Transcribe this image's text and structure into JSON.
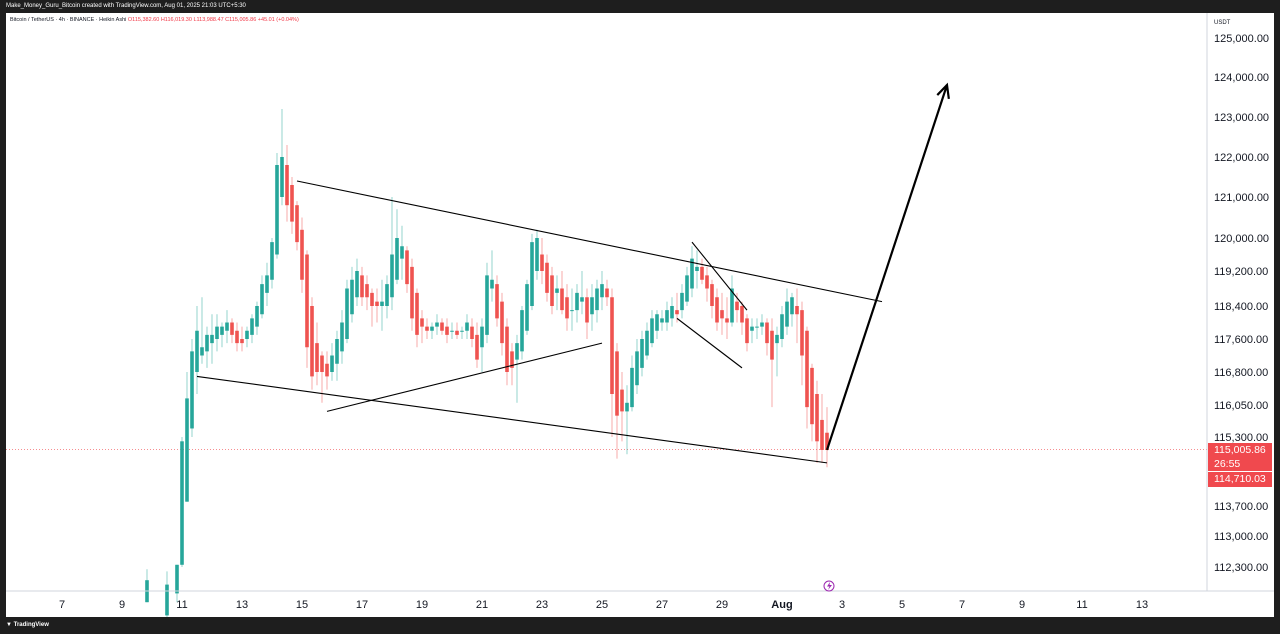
{
  "header": {
    "attribution": "Make_Money_Guru_Bitcoin created with TradingView.com, Aug 01, 2025 21:03 UTC+5:30"
  },
  "footer": {
    "logo_text": "TradingView"
  },
  "legend": {
    "symbol": "Bitcoin / TetherUS · 4h · BINANCE · Heikin Ashi",
    "open": "O115,382.60",
    "high": "H116,019.30",
    "low": "L113,988.47",
    "close": "C115,005.86",
    "change": "+45.01 (+0.04%)"
  },
  "price_axis": {
    "currency": "USDT",
    "ticks": [
      "125,000.00",
      "124,000.00",
      "123,000.00",
      "122,000.00",
      "121,000.00",
      "120,000.00",
      "119,200.00",
      "118,400.00",
      "117,600.00",
      "116,800.00",
      "116,050.00",
      "115,300.00",
      "113,700.00",
      "113,000.00",
      "112,300.00"
    ],
    "current_price": "115,005.86",
    "countdown": "26:55",
    "low_marker": "114,710.03"
  },
  "time_axis": {
    "ticks": [
      "7",
      "9",
      "11",
      "13",
      "15",
      "17",
      "19",
      "21",
      "23",
      "25",
      "27",
      "29",
      "Aug",
      "3",
      "5",
      "7",
      "9",
      "11",
      "13"
    ]
  },
  "colors": {
    "up": "#26a69a",
    "down": "#ef5350",
    "price_label": "#f0494e",
    "lines": "#000000"
  },
  "chart_data": {
    "type": "candlestick",
    "series_style": "Heikin Ashi",
    "timeframe": "4h",
    "symbol": "BTCUSDT",
    "ylim": [
      111900,
      125400
    ],
    "x_range_days": [
      "Jul 5",
      "Aug 14"
    ],
    "candles": [
      {
        "t": "Jul 09 20:00",
        "o": 111500,
        "h": 112250,
        "l": 111500,
        "c": 112000
      },
      {
        "t": "Jul 10 12:00",
        "o": 111200,
        "h": 112200,
        "l": 111000,
        "c": 111900
      },
      {
        "t": "Jul 10 20:00",
        "o": 111700,
        "h": 112350,
        "l": 111500,
        "c": 112350
      },
      {
        "t": "Jul 11 00:00",
        "o": 112350,
        "h": 115300,
        "l": 112300,
        "c": 115200
      },
      {
        "t": "Jul 11 04:00",
        "o": 113800,
        "h": 116800,
        "l": 113800,
        "c": 116200
      },
      {
        "t": "Jul 11 08:00",
        "o": 115500,
        "h": 117600,
        "l": 115300,
        "c": 117300
      },
      {
        "t": "Jul 11 12:00",
        "o": 116800,
        "h": 118400,
        "l": 116300,
        "c": 117800
      },
      {
        "t": "Jul 11 16:00",
        "o": 117200,
        "h": 118600,
        "l": 117000,
        "c": 117400
      },
      {
        "t": "Jul 11 20:00",
        "o": 117300,
        "h": 117900,
        "l": 116900,
        "c": 117700
      },
      {
        "t": "Jul 12 00:00",
        "o": 117500,
        "h": 118200,
        "l": 117000,
        "c": 117700
      },
      {
        "t": "Jul 12 04:00",
        "o": 117600,
        "h": 118200,
        "l": 117300,
        "c": 117900
      },
      {
        "t": "Jul 12 08:00",
        "o": 117700,
        "h": 118000,
        "l": 117400,
        "c": 117900
      },
      {
        "t": "Jul 12 12:00",
        "o": 117800,
        "h": 118300,
        "l": 117500,
        "c": 118000
      },
      {
        "t": "Jul 12 16:00",
        "o": 118000,
        "h": 118100,
        "l": 117500,
        "c": 117700
      },
      {
        "t": "Jul 12 20:00",
        "o": 117800,
        "h": 118000,
        "l": 117300,
        "c": 117500
      },
      {
        "t": "Jul 13 00:00",
        "o": 117600,
        "h": 117900,
        "l": 117300,
        "c": 117500
      },
      {
        "t": "Jul 13 04:00",
        "o": 117600,
        "h": 117900,
        "l": 117400,
        "c": 117800
      },
      {
        "t": "Jul 13 08:00",
        "o": 117700,
        "h": 118200,
        "l": 117500,
        "c": 118100
      },
      {
        "t": "Jul 13 12:00",
        "o": 117900,
        "h": 118500,
        "l": 117700,
        "c": 118400
      },
      {
        "t": "Jul 13 16:00",
        "o": 118200,
        "h": 119100,
        "l": 118100,
        "c": 118900
      },
      {
        "t": "Jul 13 20:00",
        "o": 118700,
        "h": 119400,
        "l": 118400,
        "c": 119100
      },
      {
        "t": "Jul 14 00:00",
        "o": 119000,
        "h": 120000,
        "l": 118800,
        "c": 119900
      },
      {
        "t": "Jul 14 04:00",
        "o": 119600,
        "h": 122100,
        "l": 119500,
        "c": 121800
      },
      {
        "t": "Jul 14 08:00",
        "o": 121000,
        "h": 123200,
        "l": 120800,
        "c": 122000
      },
      {
        "t": "Jul 14 12:00",
        "o": 121800,
        "h": 122300,
        "l": 120400,
        "c": 120800
      },
      {
        "t": "Jul 14 16:00",
        "o": 121300,
        "h": 121500,
        "l": 120100,
        "c": 120400
      },
      {
        "t": "Jul 14 20:00",
        "o": 120800,
        "h": 120900,
        "l": 119700,
        "c": 119900
      },
      {
        "t": "Jul 15 00:00",
        "o": 120200,
        "h": 120500,
        "l": 118700,
        "c": 119000
      },
      {
        "t": "Jul 15 04:00",
        "o": 119600,
        "h": 119700,
        "l": 116900,
        "c": 117400
      },
      {
        "t": "Jul 15 08:00",
        "o": 118400,
        "h": 118600,
        "l": 116400,
        "c": 116700
      },
      {
        "t": "Jul 15 12:00",
        "o": 117500,
        "h": 118000,
        "l": 116500,
        "c": 116800
      },
      {
        "t": "Jul 15 16:00",
        "o": 117200,
        "h": 117300,
        "l": 116100,
        "c": 116800
      },
      {
        "t": "Jul 15 20:00",
        "o": 117000,
        "h": 117300,
        "l": 116400,
        "c": 116700
      },
      {
        "t": "Jul 16 00:00",
        "o": 116800,
        "h": 117500,
        "l": 116600,
        "c": 117200
      },
      {
        "t": "Jul 16 04:00",
        "o": 117000,
        "h": 117800,
        "l": 116600,
        "c": 117600
      },
      {
        "t": "Jul 16 08:00",
        "o": 117300,
        "h": 118300,
        "l": 117000,
        "c": 118000
      },
      {
        "t": "Jul 16 12:00",
        "o": 117600,
        "h": 119000,
        "l": 117500,
        "c": 118800
      },
      {
        "t": "Jul 16 16:00",
        "o": 118200,
        "h": 119300,
        "l": 118000,
        "c": 119000
      },
      {
        "t": "Jul 16 20:00",
        "o": 118600,
        "h": 119500,
        "l": 118400,
        "c": 119200
      },
      {
        "t": "Jul 17 00:00",
        "o": 119100,
        "h": 119300,
        "l": 118400,
        "c": 118600
      },
      {
        "t": "Jul 17 04:00",
        "o": 118900,
        "h": 119100,
        "l": 118300,
        "c": 118600
      },
      {
        "t": "Jul 17 08:00",
        "o": 118700,
        "h": 118800,
        "l": 117900,
        "c": 118400
      },
      {
        "t": "Jul 17 12:00",
        "o": 118500,
        "h": 118800,
        "l": 118000,
        "c": 118400
      },
      {
        "t": "Jul 17 16:00",
        "o": 118400,
        "h": 119000,
        "l": 117800,
        "c": 118500
      },
      {
        "t": "Jul 17 20:00",
        "o": 118400,
        "h": 119100,
        "l": 118100,
        "c": 118900
      },
      {
        "t": "Jul 18 00:00",
        "o": 118600,
        "h": 121000,
        "l": 118300,
        "c": 119600
      },
      {
        "t": "Jul 18 04:00",
        "o": 119000,
        "h": 120700,
        "l": 118900,
        "c": 120000
      },
      {
        "t": "Jul 18 08:00",
        "o": 119500,
        "h": 120300,
        "l": 119000,
        "c": 119800
      },
      {
        "t": "Jul 18 12:00",
        "o": 119700,
        "h": 119800,
        "l": 118700,
        "c": 118900
      },
      {
        "t": "Jul 18 16:00",
        "o": 119300,
        "h": 119500,
        "l": 117800,
        "c": 118100
      },
      {
        "t": "Jul 18 20:00",
        "o": 118700,
        "h": 118800,
        "l": 117400,
        "c": 117700
      },
      {
        "t": "Jul 19 00:00",
        "o": 118100,
        "h": 118300,
        "l": 117500,
        "c": 117900
      },
      {
        "t": "Jul 19 04:00",
        "o": 117900,
        "h": 118100,
        "l": 117600,
        "c": 117800
      },
      {
        "t": "Jul 19 08:00",
        "o": 117800,
        "h": 118000,
        "l": 117600,
        "c": 117900
      },
      {
        "t": "Jul 19 12:00",
        "o": 117900,
        "h": 118200,
        "l": 117700,
        "c": 118000
      },
      {
        "t": "Jul 19 16:00",
        "o": 118000,
        "h": 118100,
        "l": 117700,
        "c": 117800
      },
      {
        "t": "Jul 19 20:00",
        "o": 117900,
        "h": 118100,
        "l": 117500,
        "c": 117700
      },
      {
        "t": "Jul 20 00:00",
        "o": 117800,
        "h": 118000,
        "l": 117600,
        "c": 117800
      },
      {
        "t": "Jul 20 04:00",
        "o": 117800,
        "h": 118000,
        "l": 117600,
        "c": 117700
      },
      {
        "t": "Jul 20 08:00",
        "o": 117800,
        "h": 117900,
        "l": 117600,
        "c": 117800
      },
      {
        "t": "Jul 20 12:00",
        "o": 117800,
        "h": 118200,
        "l": 117600,
        "c": 118000
      },
      {
        "t": "Jul 20 16:00",
        "o": 117900,
        "h": 118100,
        "l": 117400,
        "c": 117600
      },
      {
        "t": "Jul 20 20:00",
        "o": 117700,
        "h": 118000,
        "l": 116900,
        "c": 117100
      },
      {
        "t": "Jul 21 00:00",
        "o": 117400,
        "h": 118100,
        "l": 116800,
        "c": 117900
      },
      {
        "t": "Jul 21 04:00",
        "o": 117700,
        "h": 119400,
        "l": 117500,
        "c": 119100
      },
      {
        "t": "Jul 21 08:00",
        "o": 118800,
        "h": 119700,
        "l": 118500,
        "c": 119000
      },
      {
        "t": "Jul 21 12:00",
        "o": 118900,
        "h": 119100,
        "l": 117900,
        "c": 118100
      },
      {
        "t": "Jul 21 16:00",
        "o": 118500,
        "h": 118700,
        "l": 117200,
        "c": 117500
      },
      {
        "t": "Jul 21 20:00",
        "o": 117900,
        "h": 118100,
        "l": 116500,
        "c": 116800
      },
      {
        "t": "Jul 22 00:00",
        "o": 117300,
        "h": 117500,
        "l": 116500,
        "c": 116900
      },
      {
        "t": "Jul 22 04:00",
        "o": 117100,
        "h": 117700,
        "l": 116100,
        "c": 117500
      },
      {
        "t": "Jul 22 08:00",
        "o": 117300,
        "h": 118400,
        "l": 117100,
        "c": 118300
      },
      {
        "t": "Jul 22 12:00",
        "o": 117800,
        "h": 119000,
        "l": 117700,
        "c": 118900
      },
      {
        "t": "Jul 22 16:00",
        "o": 118400,
        "h": 120100,
        "l": 118300,
        "c": 119900
      },
      {
        "t": "Jul 22 20:00",
        "o": 119200,
        "h": 120200,
        "l": 119000,
        "c": 120000
      },
      {
        "t": "Jul 23 00:00",
        "o": 119600,
        "h": 120000,
        "l": 118900,
        "c": 119200
      },
      {
        "t": "Jul 23 04:00",
        "o": 119400,
        "h": 119600,
        "l": 118500,
        "c": 118700
      },
      {
        "t": "Jul 23 08:00",
        "o": 119100,
        "h": 119300,
        "l": 118200,
        "c": 118400
      },
      {
        "t": "Jul 23 12:00",
        "o": 118700,
        "h": 119100,
        "l": 118300,
        "c": 118800
      },
      {
        "t": "Jul 23 16:00",
        "o": 118800,
        "h": 119200,
        "l": 118200,
        "c": 118300
      },
      {
        "t": "Jul 23 20:00",
        "o": 118600,
        "h": 118900,
        "l": 117800,
        "c": 118100
      },
      {
        "t": "Jul 24 00:00",
        "o": 118300,
        "h": 118800,
        "l": 117800,
        "c": 118300
      },
      {
        "t": "Jul 24 04:00",
        "o": 118300,
        "h": 118900,
        "l": 118000,
        "c": 118700
      },
      {
        "t": "Jul 24 08:00",
        "o": 118500,
        "h": 119200,
        "l": 118200,
        "c": 118600
      },
      {
        "t": "Jul 24 12:00",
        "o": 118600,
        "h": 118800,
        "l": 117600,
        "c": 118000
      },
      {
        "t": "Jul 24 16:00",
        "o": 118200,
        "h": 118900,
        "l": 117800,
        "c": 118600
      },
      {
        "t": "Jul 24 20:00",
        "o": 118300,
        "h": 119000,
        "l": 118000,
        "c": 118800
      },
      {
        "t": "Jul 25 00:00",
        "o": 118600,
        "h": 119200,
        "l": 118300,
        "c": 118900
      },
      {
        "t": "Jul 25 04:00",
        "o": 118800,
        "h": 119000,
        "l": 118400,
        "c": 118600
      },
      {
        "t": "Jul 25 08:00",
        "o": 118600,
        "h": 118800,
        "l": 115300,
        "c": 116300
      },
      {
        "t": "Jul 25 12:00",
        "o": 117300,
        "h": 117500,
        "l": 114800,
        "c": 115800
      },
      {
        "t": "Jul 25 16:00",
        "o": 116400,
        "h": 116800,
        "l": 115200,
        "c": 115900
      },
      {
        "t": "Jul 25 20:00",
        "o": 115900,
        "h": 116500,
        "l": 114900,
        "c": 116100
      },
      {
        "t": "Jul 26 00:00",
        "o": 116000,
        "h": 117200,
        "l": 115900,
        "c": 116900
      },
      {
        "t": "Jul 26 04:00",
        "o": 116500,
        "h": 117600,
        "l": 116300,
        "c": 117300
      },
      {
        "t": "Jul 26 08:00",
        "o": 116900,
        "h": 117800,
        "l": 116700,
        "c": 117600
      },
      {
        "t": "Jul 26 12:00",
        "o": 117200,
        "h": 118000,
        "l": 117100,
        "c": 117800
      },
      {
        "t": "Jul 26 16:00",
        "o": 117500,
        "h": 118300,
        "l": 117400,
        "c": 118100
      },
      {
        "t": "Jul 26 20:00",
        "o": 117800,
        "h": 118300,
        "l": 117600,
        "c": 118200
      },
      {
        "t": "Jul 27 00:00",
        "o": 118000,
        "h": 118300,
        "l": 117800,
        "c": 118100
      },
      {
        "t": "Jul 27 04:00",
        "o": 118000,
        "h": 118500,
        "l": 117800,
        "c": 118300
      },
      {
        "t": "Jul 27 08:00",
        "o": 118100,
        "h": 118600,
        "l": 117900,
        "c": 118400
      },
      {
        "t": "Jul 27 12:00",
        "o": 118300,
        "h": 118700,
        "l": 118000,
        "c": 118200
      },
      {
        "t": "Jul 27 16:00",
        "o": 118300,
        "h": 118900,
        "l": 118100,
        "c": 118700
      },
      {
        "t": "Jul 27 20:00",
        "o": 118500,
        "h": 119300,
        "l": 118400,
        "c": 119100
      },
      {
        "t": "Jul 28 00:00",
        "o": 118800,
        "h": 119800,
        "l": 118600,
        "c": 119500
      },
      {
        "t": "Jul 28 04:00",
        "o": 119200,
        "h": 119700,
        "l": 118800,
        "c": 119300
      },
      {
        "t": "Jul 28 08:00",
        "o": 119300,
        "h": 119500,
        "l": 118900,
        "c": 119000
      },
      {
        "t": "Jul 28 12:00",
        "o": 119100,
        "h": 119300,
        "l": 118500,
        "c": 118800
      },
      {
        "t": "Jul 28 16:00",
        "o": 118900,
        "h": 119000,
        "l": 118100,
        "c": 118400
      },
      {
        "t": "Jul 28 20:00",
        "o": 118600,
        "h": 118800,
        "l": 117800,
        "c": 118000
      },
      {
        "t": "Jul 29 00:00",
        "o": 118300,
        "h": 118700,
        "l": 117700,
        "c": 118100
      },
      {
        "t": "Jul 29 04:00",
        "o": 118100,
        "h": 118600,
        "l": 117600,
        "c": 118000
      },
      {
        "t": "Jul 29 08:00",
        "o": 118000,
        "h": 119100,
        "l": 117900,
        "c": 118800
      },
      {
        "t": "Jul 29 12:00",
        "o": 118500,
        "h": 118700,
        "l": 118000,
        "c": 118300
      },
      {
        "t": "Jul 29 16:00",
        "o": 118400,
        "h": 118500,
        "l": 117700,
        "c": 118000
      },
      {
        "t": "Jul 29 20:00",
        "o": 118100,
        "h": 118200,
        "l": 117300,
        "c": 117500
      },
      {
        "t": "Jul 30 00:00",
        "o": 117800,
        "h": 118100,
        "l": 117500,
        "c": 117900
      },
      {
        "t": "Jul 30 04:00",
        "o": 117900,
        "h": 118100,
        "l": 117600,
        "c": 117900
      },
      {
        "t": "Jul 30 08:00",
        "o": 117900,
        "h": 118200,
        "l": 117700,
        "c": 118000
      },
      {
        "t": "Jul 30 12:00",
        "o": 118000,
        "h": 118100,
        "l": 117200,
        "c": 117500
      },
      {
        "t": "Jul 30 16:00",
        "o": 117800,
        "h": 118100,
        "l": 116000,
        "c": 117100
      },
      {
        "t": "Jul 30 20:00",
        "o": 117500,
        "h": 117900,
        "l": 116700,
        "c": 117700
      },
      {
        "t": "Jul 31 00:00",
        "o": 117600,
        "h": 118400,
        "l": 117400,
        "c": 118200
      },
      {
        "t": "Jul 31 04:00",
        "o": 117900,
        "h": 118800,
        "l": 117700,
        "c": 118500
      },
      {
        "t": "Jul 31 08:00",
        "o": 118200,
        "h": 118700,
        "l": 117900,
        "c": 118600
      },
      {
        "t": "Jul 31 12:00",
        "o": 118400,
        "h": 118800,
        "l": 117500,
        "c": 118200
      },
      {
        "t": "Jul 31 16:00",
        "o": 118300,
        "h": 118500,
        "l": 116500,
        "c": 117200
      },
      {
        "t": "Jul 31 20:00",
        "o": 117800,
        "h": 117900,
        "l": 115500,
        "c": 116000
      },
      {
        "t": "Aug 01 00:00",
        "o": 116900,
        "h": 117000,
        "l": 115200,
        "c": 115600
      },
      {
        "t": "Aug 01 04:00",
        "o": 116300,
        "h": 116600,
        "l": 114700,
        "c": 115200
      },
      {
        "t": "Aug 01 08:00",
        "o": 115700,
        "h": 116300,
        "l": 114700,
        "c": 115000
      },
      {
        "t": "Aug 01 12:00",
        "o": 115400,
        "h": 116000,
        "l": 114600,
        "c": 115000
      }
    ],
    "annotations": [
      {
        "kind": "trendline",
        "label": "",
        "from": [
          "Jul 14 20:00",
          121400
        ],
        "to": [
          "Aug 03 08:00",
          118500
        ]
      },
      {
        "kind": "trendline",
        "label": "",
        "from": [
          "Jul 11 12:00",
          116700
        ],
        "to": [
          "Aug 01 12:00",
          114700
        ]
      },
      {
        "kind": "trendline",
        "label": "",
        "from": [
          "Jul 15 20:00",
          115900
        ],
        "to": [
          "Jul 25 00:00",
          117500
        ]
      },
      {
        "kind": "trendline",
        "label": "",
        "from": [
          "Jul 28 00:00",
          119900
        ],
        "to": [
          "Jul 29 20:00",
          118300
        ]
      },
      {
        "kind": "trendline",
        "label": "",
        "from": [
          "Jul 27 12:00",
          118100
        ],
        "to": [
          "Jul 29 16:00",
          116900
        ]
      },
      {
        "kind": "arrow",
        "label": "",
        "from": [
          "Aug 01 12:00",
          115000
        ],
        "to": [
          "Aug 05 12:00",
          123800
        ]
      }
    ]
  }
}
